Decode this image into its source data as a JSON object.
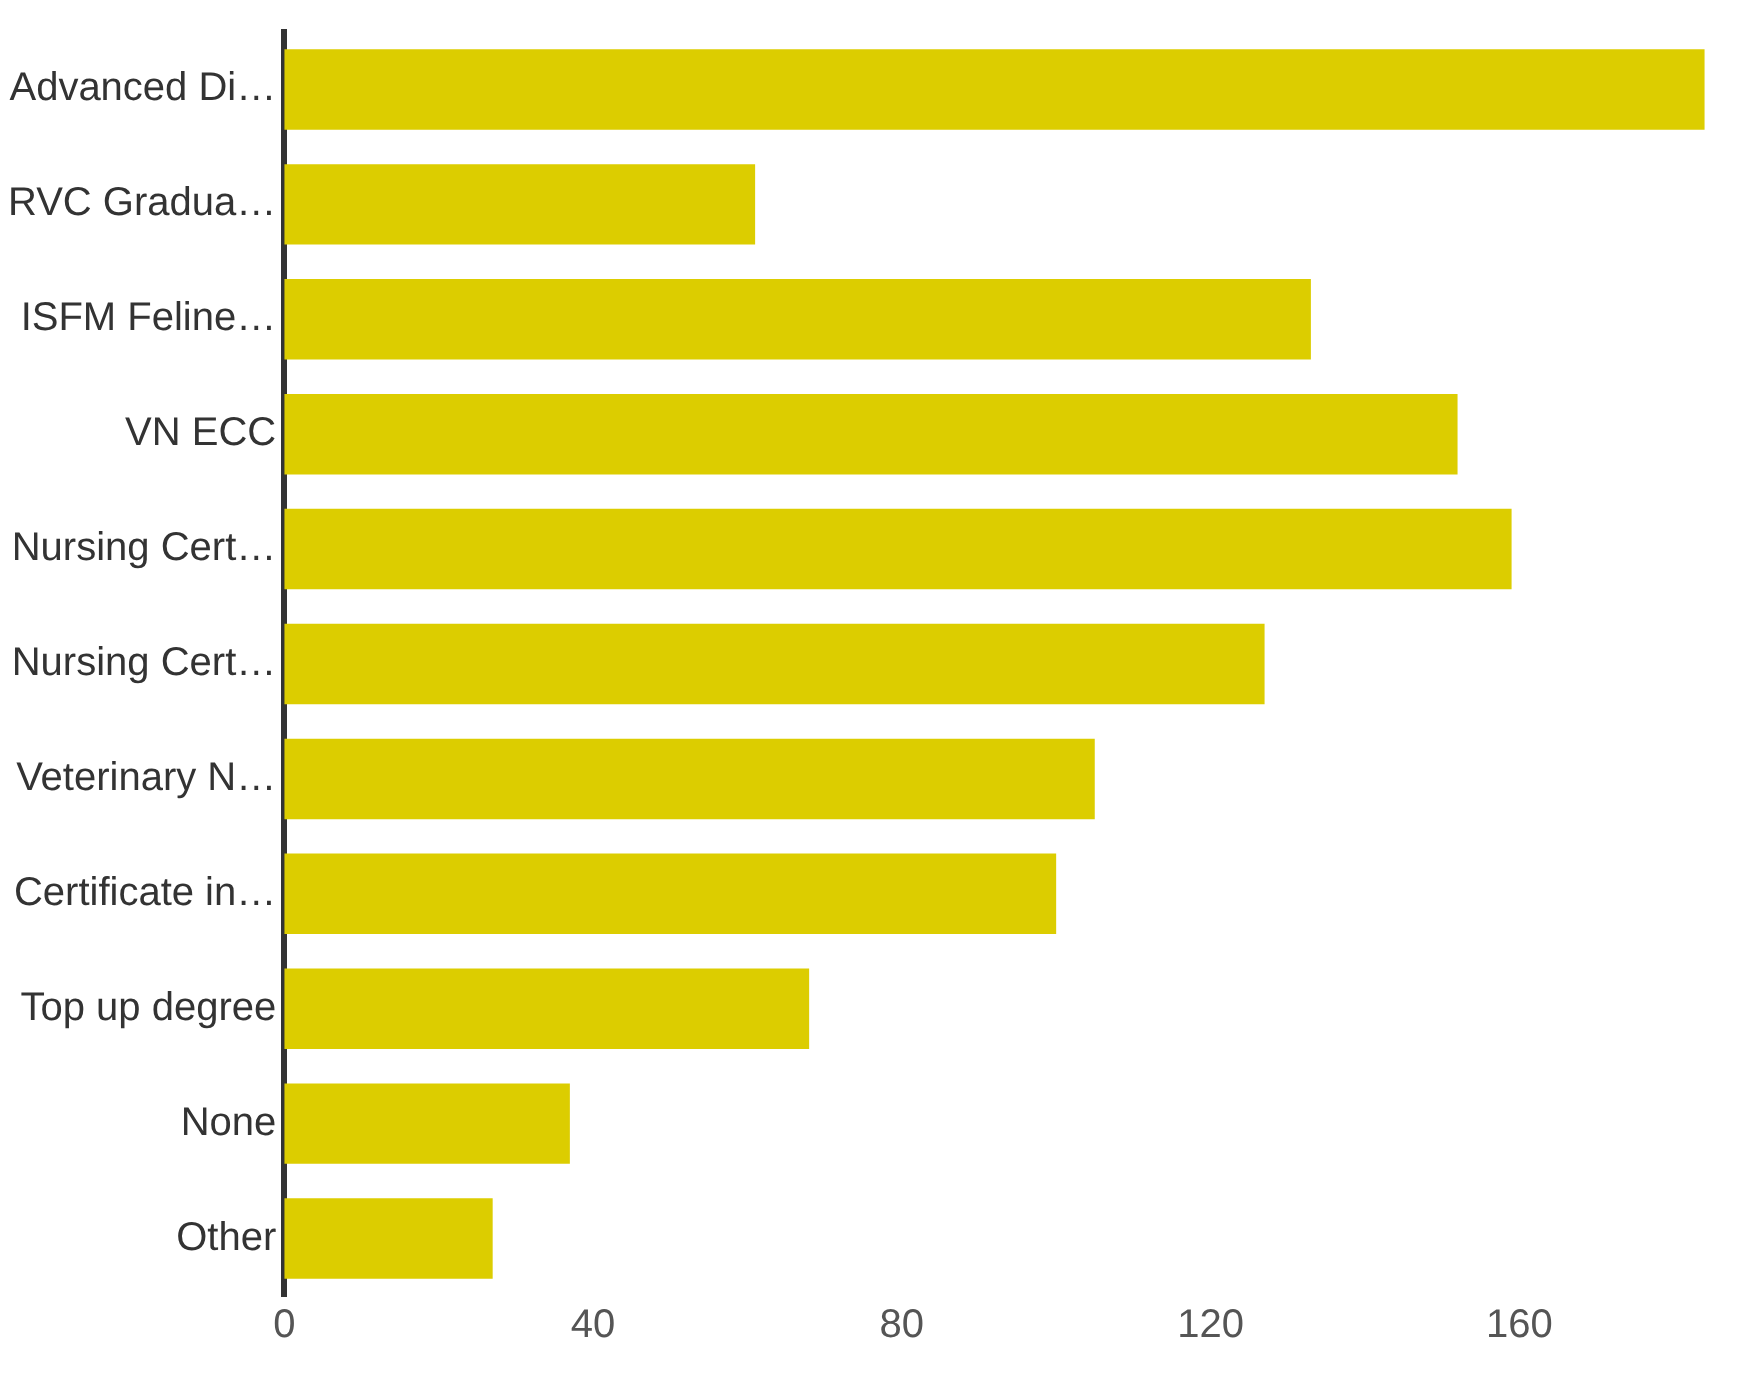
{
  "chart_data": {
    "type": "bar",
    "orientation": "horizontal",
    "categories": [
      "Advanced Di…",
      "RVC Gradua…",
      "ISFM Feline…",
      "VN ECC",
      "Nursing Cert…",
      "Nursing Cert…",
      "Veterinary N…",
      "Certificate in…",
      "Top up degree",
      "None",
      "Other"
    ],
    "values": [
      184,
      61,
      133,
      152,
      159,
      127,
      105,
      100,
      68,
      37,
      27
    ],
    "color": "#dccd00",
    "xlim": [
      0,
      186
    ],
    "xticks": [
      0,
      40,
      80,
      120,
      160
    ],
    "grid": false,
    "legend": false
  }
}
